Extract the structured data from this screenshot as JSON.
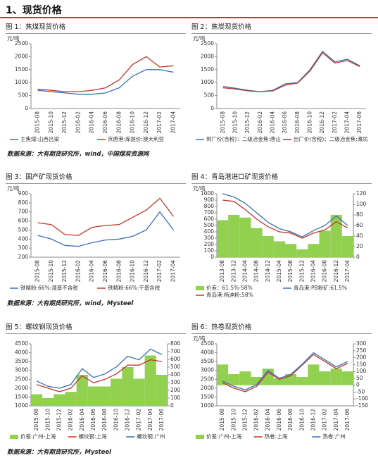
{
  "heading": "1、现货价格",
  "sources": [
    "数据来源：大有期货研究所，wind，中国煤炭资源网",
    "数据来源：大有期货研究所，wind，Mysteel",
    "数据来源：大有期货研究所，Mysteel"
  ],
  "chart_data": [
    {
      "type": "line",
      "title": "图 1：焦煤现货价格",
      "y_label": "元/吨",
      "categories": [
        "2015-08",
        "2015-10",
        "2015-12",
        "2016-02",
        "2016-04",
        "2016-06",
        "2016-08",
        "2016-10",
        "2016-12",
        "2017-02",
        "2017-04"
      ],
      "ylim": [
        0,
        2500
      ],
      "yticks": [
        0,
        500,
        1000,
        1500,
        2000,
        2500
      ],
      "series": [
        {
          "name": "主焦煤:山西吕梁",
          "color": "#3b6fb6",
          "values": [
            700,
            650,
            600,
            550,
            550,
            600,
            800,
            1250,
            1500,
            1500,
            1400
          ]
        },
        {
          "name": "京唐港:库提价:澳大利亚",
          "color": "#c0392b",
          "values": [
            750,
            700,
            650,
            650,
            700,
            800,
            1100,
            1700,
            2000,
            1600,
            1650
          ]
        }
      ]
    },
    {
      "type": "line",
      "title": "图 2：焦炭现货价格",
      "y_label": "元/吨",
      "categories": [
        "2015-08",
        "2015-10",
        "2015-12",
        "2016-02",
        "2016-04",
        "2016-06",
        "2016-08",
        "2016-10",
        "2016-12",
        "2017-02",
        "2017-04",
        "2017-06"
      ],
      "ylim": [
        0,
        2500
      ],
      "yticks": [
        0,
        500,
        1000,
        1500,
        2000,
        2500
      ],
      "series": [
        {
          "name": "到厂价(含税)：二级冶金焦:唐山",
          "color": "#3b6fb6",
          "values": [
            850,
            780,
            700,
            650,
            700,
            950,
            1000,
            1500,
            2200,
            1800,
            1900,
            1650
          ]
        },
        {
          "name": "出厂价(含税)：二级冶金焦:潍坊",
          "color": "#c0392b",
          "values": [
            800,
            750,
            680,
            650,
            680,
            900,
            980,
            1450,
            2150,
            1750,
            1850,
            1620
          ]
        }
      ]
    },
    {
      "type": "line",
      "title": "图 3：国产矿现货价格",
      "y_label": "元/吨",
      "categories": [
        "2015-08",
        "2015-10",
        "2015-12",
        "2016-02",
        "2016-04",
        "2016-06",
        "2016-08",
        "2016-10",
        "2016-12",
        "2017-02",
        "2017-04"
      ],
      "ylim": [
        200,
        900
      ],
      "yticks": [
        200,
        300,
        400,
        500,
        600,
        700,
        800,
        900
      ],
      "series": [
        {
          "name": "铁精粉:66%:湿基不含税",
          "color": "#3b6fb6",
          "values": [
            440,
            400,
            330,
            320,
            360,
            390,
            400,
            430,
            500,
            700,
            500
          ]
        },
        {
          "name": "铁精粉:66%:干基含税",
          "color": "#c0392b",
          "values": [
            580,
            560,
            450,
            440,
            530,
            550,
            560,
            640,
            720,
            850,
            650
          ]
        }
      ]
    },
    {
      "type": "line",
      "title": "图 4：青岛港进口矿现货价格",
      "y_label": "元/吨",
      "categories": [
        "2013-08",
        "2013-12",
        "2014-04",
        "2014-08",
        "2014-12",
        "2015-04",
        "2015-08",
        "2015-12",
        "2016-04",
        "2016-08",
        "2016-12",
        "2017-04"
      ],
      "ylim": [
        0,
        1000
      ],
      "yticks": [
        0,
        100,
        200,
        300,
        400,
        500,
        600,
        700,
        800,
        900,
        1000
      ],
      "y2lim": [
        0,
        120
      ],
      "y2ticks": [
        0,
        20,
        40,
        60,
        80,
        100,
        120
      ],
      "series": [
        {
          "name": "价差：61.5%-58%",
          "color": "#92d050",
          "axis": "y2",
          "values": [
            70,
            80,
            75,
            55,
            40,
            30,
            25,
            15,
            25,
            50,
            80,
            40
          ]
        },
        {
          "name": "青岛港:PB粉矿:61.5%",
          "color": "#3b6fb6",
          "values": [
            1000,
            950,
            850,
            700,
            550,
            450,
            400,
            320,
            420,
            500,
            650,
            500
          ]
        },
        {
          "name": "青岛港:杨迪粉:58%",
          "color": "#c0392b",
          "values": [
            900,
            880,
            750,
            600,
            480,
            400,
            380,
            300,
            380,
            430,
            560,
            460
          ]
        }
      ]
    },
    {
      "type": "line",
      "title": "图 5：螺纹钢现货价格",
      "categories": [
        "2015-08",
        "2015-10",
        "2015-12",
        "2016-02",
        "2016-04",
        "2016-06",
        "2016-08",
        "2016-10",
        "2016-12",
        "2017-02",
        "2017-04",
        "2017-06"
      ],
      "ylim": [
        1000,
        4500
      ],
      "yticks": [
        1000,
        1500,
        2000,
        2500,
        3000,
        3500,
        4000,
        4500
      ],
      "y2lim": [
        0,
        800
      ],
      "y2ticks": [
        0,
        100,
        200,
        300,
        400,
        500,
        600,
        700,
        800
      ],
      "series": [
        {
          "name": "价差:广州-上海",
          "color": "#92d050",
          "axis": "y2",
          "values": [
            150,
            100,
            150,
            180,
            400,
            250,
            250,
            350,
            500,
            350,
            650,
            400
          ]
        },
        {
          "name": "螺纹钢:上海",
          "color": "#c0392b",
          "values": [
            2200,
            2000,
            1800,
            2000,
            2700,
            2300,
            2500,
            2800,
            3300,
            3300,
            3600,
            3500
          ]
        },
        {
          "name": "螺纹钢:广州",
          "color": "#3b6fb6",
          "values": [
            2400,
            2100,
            2000,
            2200,
            3100,
            2600,
            2800,
            3200,
            3800,
            3600,
            4200,
            3900
          ]
        }
      ]
    },
    {
      "type": "line",
      "title": "图 6：热卷现货价格",
      "y_label": "元/吨",
      "categories": [
        "2015-08",
        "2015-10",
        "2015-12",
        "2016-02",
        "2016-04",
        "2016-06",
        "2016-08",
        "2016-10",
        "2016-12",
        "2017-02",
        "2017-04",
        "2017-06"
      ],
      "ylim": [
        1000,
        4500
      ],
      "yticks": [
        1000,
        1500,
        2000,
        2500,
        3000,
        3500,
        4000,
        4500
      ],
      "y2lim": [
        -150,
        300
      ],
      "y2ticks": [
        -150,
        -100,
        -50,
        0,
        50,
        100,
        150,
        200,
        250,
        300
      ],
      "series": [
        {
          "name": "价差:广州-上海",
          "color": "#92d050",
          "axis": "y2",
          "values": [
            150,
            80,
            100,
            60,
            120,
            50,
            80,
            60,
            150,
            100,
            120,
            100
          ]
        },
        {
          "name": "热卷:上海",
          "color": "#c0392b",
          "values": [
            2300,
            2000,
            1800,
            2100,
            2900,
            2500,
            2700,
            3300,
            3900,
            3500,
            3100,
            3400
          ]
        },
        {
          "name": "热卷:广州",
          "color": "#3b6fb6",
          "values": [
            2400,
            2100,
            1900,
            2200,
            3000,
            2550,
            2780,
            3350,
            4000,
            3600,
            3200,
            3500
          ]
        }
      ]
    }
  ]
}
